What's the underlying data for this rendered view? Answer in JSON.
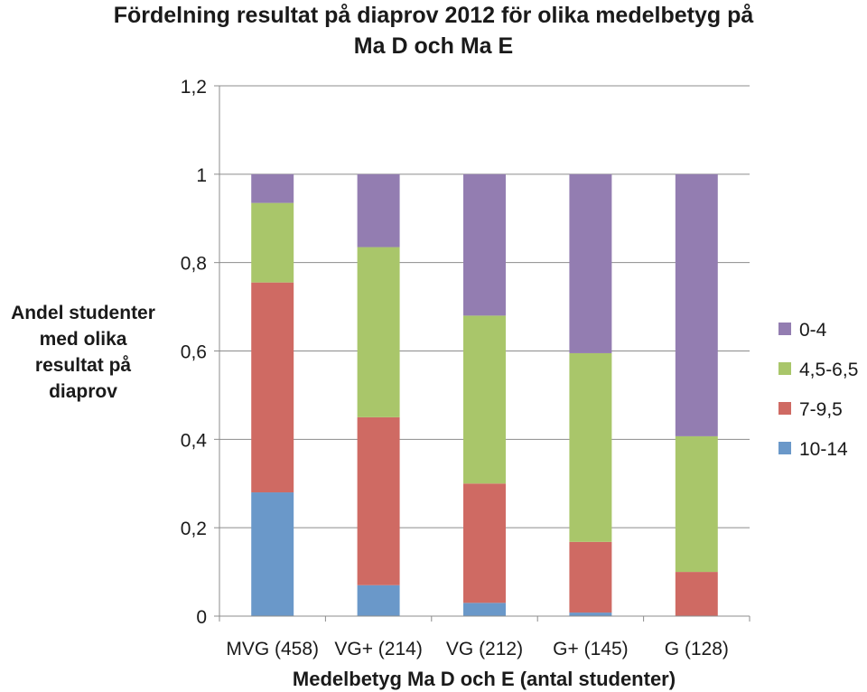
{
  "chart_data": {
    "type": "bar",
    "stacked": true,
    "title": "Fördelning resultat på diaprov 2012 för olika medelbetyg på Ma D och Ma E",
    "title_lines": [
      "Fördelning resultat på diaprov 2012 för olika medelbetyg på",
      "Ma D och Ma E"
    ],
    "xlabel": "Medelbetyg Ma D och E (antal studenter)",
    "ylabel": "Andel studenter med olika resultat på diaprov",
    "ylabel_lines": [
      "Andel studenter",
      "med olika",
      "resultat på",
      "diaprov"
    ],
    "categories": [
      "MVG (458)",
      "VG+ (214)",
      "VG (212)",
      "G+ (145)",
      "G (128)"
    ],
    "ylim": [
      0,
      1.2
    ],
    "yticks": [
      0,
      0.2,
      0.4,
      0.6,
      0.8,
      1.0,
      1.2
    ],
    "ytick_labels": [
      "0",
      "0,2",
      "0,4",
      "0,6",
      "0,8",
      "1",
      "1,2"
    ],
    "grid": true,
    "legend_position": "right",
    "series": [
      {
        "name": "10-14",
        "color": "#6a98c9",
        "values": [
          0.28,
          0.07,
          0.03,
          0.008,
          0.0
        ]
      },
      {
        "name": "7-9,5",
        "color": "#cf6a63",
        "values": [
          0.475,
          0.38,
          0.27,
          0.16,
          0.1
        ]
      },
      {
        "name": "4,5-6,5",
        "color": "#a9c66a",
        "values": [
          0.18,
          0.385,
          0.38,
          0.427,
          0.307
        ]
      },
      {
        "name": "0-4",
        "color": "#937db1",
        "values": [
          0.065,
          0.165,
          0.32,
          0.405,
          0.593
        ]
      }
    ]
  }
}
